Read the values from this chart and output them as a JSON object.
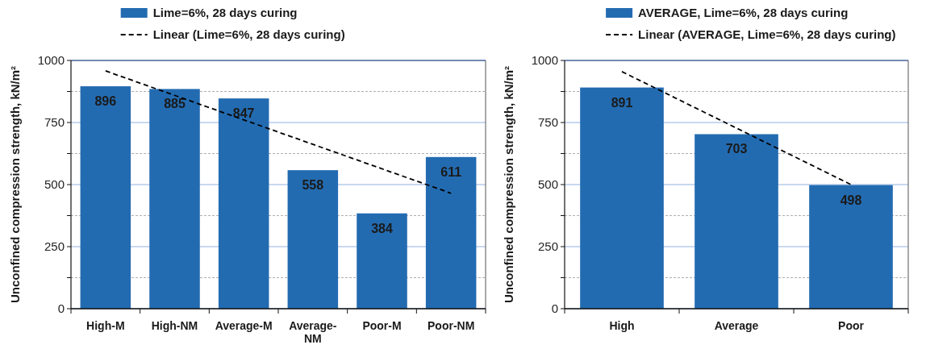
{
  "chart_data": [
    {
      "type": "bar",
      "categories": [
        "High-M",
        "High-NM",
        "Average-M",
        "Average-NM",
        "Poor-M",
        "Poor-NM"
      ],
      "ylabel": "Unconfined compression strength, kN/m²",
      "series": [
        {
          "name": "Lime=6%, 28 days curing",
          "color": "#236bb1",
          "values": [
            896,
            885,
            847,
            558,
            384,
            611
          ],
          "value_labels": [
            "896",
            "885",
            "847",
            "558",
            "384",
            "611"
          ]
        },
        {
          "name": "Linear (Lime=6%, 28 days curing)",
          "type": "line",
          "color": "#000000",
          "line_style": "dashed",
          "x": [
            "High-M",
            "Poor-NM"
          ],
          "values": [
            958,
            465
          ]
        }
      ],
      "ylim": [
        0,
        1000
      ],
      "yticks": [
        0,
        {
          "value": 125,
          "label": null
        },
        250,
        {
          "value": 375,
          "label": null
        },
        500,
        {
          "value": 625,
          "label": null
        },
        750,
        {
          "value": 875,
          "label": null
        },
        1000
      ],
      "grid": "y",
      "legend": "top"
    },
    {
      "type": "bar",
      "categories": [
        "High",
        "Average",
        "Poor"
      ],
      "ylabel": "Unconfined compression strength, kN/m²",
      "series": [
        {
          "name": "AVERAGE, Lime=6%, 28 days curing",
          "color": "#236bb1",
          "values": [
            891,
            703,
            498
          ],
          "value_labels": [
            "891",
            "703",
            "498"
          ]
        },
        {
          "name": "Linear (AVERAGE, Lime=6%, 28 days curing)",
          "type": "line",
          "color": "#000000",
          "line_style": "dashed",
          "x": [
            "High",
            "Poor"
          ],
          "values": [
            955,
            500
          ]
        }
      ],
      "ylim": [
        0,
        1000
      ],
      "yticks": [
        0,
        {
          "value": 125,
          "label": null
        },
        250,
        {
          "value": 375,
          "label": null
        },
        500,
        {
          "value": 625,
          "label": null
        },
        750,
        {
          "value": 875,
          "label": null
        },
        1000
      ],
      "grid": "y",
      "legend": "top"
    }
  ]
}
